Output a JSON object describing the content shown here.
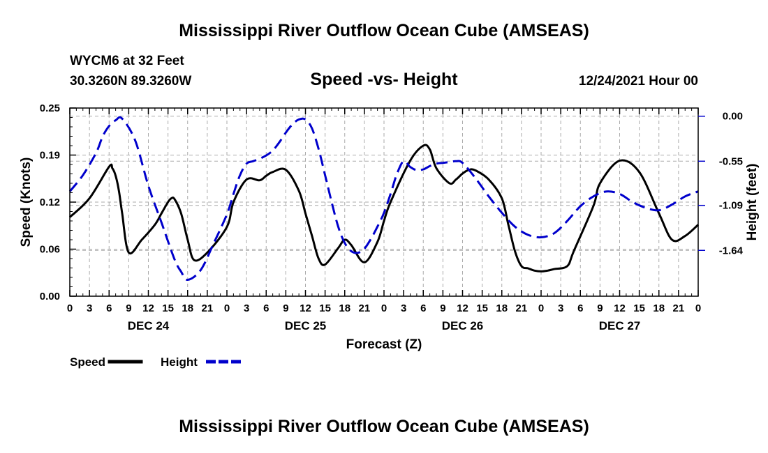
{
  "header": {
    "title": "Mississippi River Outflow Ocean Cube (AMSEAS)",
    "station": "WYCM6 at 32 Feet",
    "coords": "30.3260N  89.3260W",
    "subtitle": "Speed -vs- Height",
    "datetime": "12/24/2021 Hour 00"
  },
  "footer": {
    "title": "Mississippi River Outflow Ocean Cube (AMSEAS)"
  },
  "chart_data": {
    "type": "line",
    "xlabel": "Forecast (Z)",
    "ylabel": "Speed (Knots)",
    "y2label": "Height (feet)",
    "xlim": [
      0,
      96
    ],
    "ylim": [
      0,
      0.25
    ],
    "y2lim": [
      -2.2,
      0.1
    ],
    "x_tick_labels": [
      "0",
      "3",
      "6",
      "9",
      "12",
      "15",
      "18",
      "21",
      "0",
      "3",
      "6",
      "9",
      "12",
      "15",
      "18",
      "21",
      "0",
      "3",
      "6",
      "9",
      "12",
      "15",
      "18",
      "21",
      "0",
      "3",
      "6",
      "9",
      "12",
      "15",
      "18",
      "21",
      "0"
    ],
    "y_tick_labels": [
      "0.00",
      "0.06",
      "0.12",
      "0.19",
      "0.25"
    ],
    "y_tick_values": [
      0,
      0.0625,
      0.125,
      0.1875,
      0.25
    ],
    "y2_tick_labels": [
      "0.00",
      "-0.55",
      "-1.09",
      "-1.64"
    ],
    "y2_tick_values": [
      0,
      -0.55,
      -1.09,
      -1.64
    ],
    "day_labels": [
      {
        "x": 12,
        "label": "DEC 24"
      },
      {
        "x": 36,
        "label": "DEC 25"
      },
      {
        "x": 60,
        "label": "DEC 26"
      },
      {
        "x": 84,
        "label": "DEC 27"
      }
    ],
    "series": [
      {
        "name": "Speed",
        "axis": "left",
        "color": "#000000",
        "style": "solid",
        "x": [
          0,
          3,
          6,
          6.5,
          7,
          7.5,
          8,
          9,
          11,
          13,
          14,
          15,
          15.5,
          16,
          17,
          18,
          19,
          21,
          24,
          25,
          27,
          29,
          30,
          31,
          33,
          35,
          36,
          37,
          38,
          39,
          41,
          42,
          43,
          45,
          47,
          48,
          49,
          52,
          54,
          55,
          56,
          58,
          59,
          60,
          61,
          62,
          64,
          66,
          67,
          68,
          69,
          70,
          71,
          72,
          73,
          74,
          76,
          77,
          80,
          81,
          84,
          87,
          90,
          92,
          94,
          96
        ],
        "values": [
          0.105,
          0.13,
          0.172,
          0.17,
          0.16,
          0.14,
          0.11,
          0.058,
          0.075,
          0.095,
          0.11,
          0.125,
          0.13,
          0.129,
          0.11,
          0.075,
          0.048,
          0.058,
          0.092,
          0.125,
          0.155,
          0.154,
          0.16,
          0.165,
          0.168,
          0.14,
          0.11,
          0.08,
          0.05,
          0.042,
          0.064,
          0.075,
          0.068,
          0.045,
          0.072,
          0.1,
          0.125,
          0.18,
          0.2,
          0.195,
          0.17,
          0.15,
          0.155,
          0.163,
          0.168,
          0.167,
          0.155,
          0.13,
          0.095,
          0.06,
          0.04,
          0.037,
          0.034,
          0.033,
          0.034,
          0.036,
          0.04,
          0.06,
          0.12,
          0.15,
          0.18,
          0.165,
          0.11,
          0.075,
          0.08,
          0.095
        ]
      },
      {
        "name": "Height",
        "axis": "right",
        "color": "#0000cc",
        "style": "dashed",
        "x": [
          0,
          2,
          4,
          5,
          6,
          7,
          8,
          10,
          12,
          14,
          16,
          17,
          18,
          20,
          22,
          24,
          25,
          26,
          27,
          28,
          29,
          30,
          31,
          32,
          33,
          34,
          35,
          36,
          37,
          38,
          39,
          40,
          41,
          42,
          43,
          44,
          45,
          46,
          47,
          48,
          49,
          50,
          51,
          52,
          53,
          54,
          55,
          56,
          57,
          58,
          59,
          60,
          62,
          64,
          66,
          68,
          70,
          72,
          74,
          76,
          78,
          80,
          82,
          84,
          86,
          88,
          90,
          92,
          94,
          96
        ],
        "values": [
          -0.92,
          -0.72,
          -0.45,
          -0.25,
          -0.12,
          -0.05,
          -0.03,
          -0.3,
          -0.85,
          -1.3,
          -1.75,
          -1.9,
          -2.0,
          -1.88,
          -1.55,
          -1.2,
          -0.95,
          -0.72,
          -0.58,
          -0.55,
          -0.52,
          -0.48,
          -0.42,
          -0.32,
          -0.2,
          -0.1,
          -0.04,
          -0.04,
          -0.15,
          -0.4,
          -0.72,
          -1.05,
          -1.35,
          -1.55,
          -1.65,
          -1.67,
          -1.62,
          -1.5,
          -1.35,
          -1.18,
          -0.95,
          -0.7,
          -0.55,
          -0.62,
          -0.66,
          -0.65,
          -0.61,
          -0.58,
          -0.57,
          -0.56,
          -0.55,
          -0.57,
          -0.76,
          -0.98,
          -1.18,
          -1.35,
          -1.45,
          -1.48,
          -1.43,
          -1.28,
          -1.1,
          -0.98,
          -0.92,
          -0.95,
          -1.05,
          -1.12,
          -1.15,
          -1.08,
          -0.98,
          -0.92
        ]
      }
    ]
  },
  "legend": [
    {
      "label": "Speed",
      "color": "#000000",
      "style": "solid"
    },
    {
      "label": "Height",
      "color": "#0000cc",
      "style": "dashed"
    }
  ]
}
